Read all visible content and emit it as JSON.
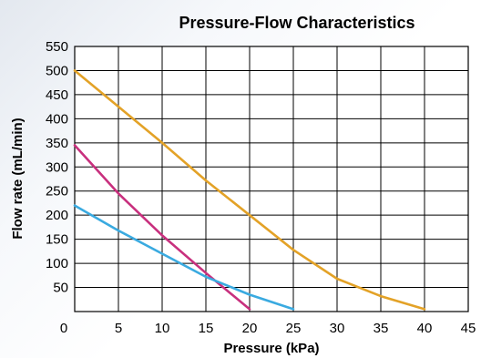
{
  "chart_data": {
    "type": "line",
    "title": "Pressure-Flow Characteristics",
    "xlabel": "Pressure (kPa)",
    "ylabel": "Flow rate (mL/min)",
    "xlim": [
      0,
      45
    ],
    "ylim": [
      0,
      550
    ],
    "xticks": [
      0,
      5,
      10,
      15,
      20,
      25,
      30,
      35,
      40,
      45
    ],
    "yticks": [
      50,
      100,
      150,
      200,
      250,
      300,
      350,
      400,
      450,
      500,
      550
    ],
    "xgrid": [
      5,
      10,
      15,
      20,
      25,
      30,
      35,
      40
    ],
    "ygrid": [
      50,
      100,
      150,
      200,
      250,
      300,
      350,
      400,
      450,
      500
    ],
    "grid": true,
    "legend": "none",
    "series": [
      {
        "color": "#e3a227",
        "x": [
          0,
          5,
          10,
          15,
          20,
          25,
          30,
          35,
          40
        ],
        "y": [
          500,
          425,
          350,
          272,
          200,
          128,
          68,
          32,
          5
        ]
      },
      {
        "color": "#c8307e",
        "x": [
          0,
          5,
          10,
          15,
          20
        ],
        "y": [
          345,
          245,
          158,
          80,
          5
        ]
      },
      {
        "color": "#3aaae0",
        "x": [
          0,
          5,
          10,
          15,
          20,
          25
        ],
        "y": [
          220,
          168,
          120,
          72,
          35,
          5
        ]
      }
    ]
  }
}
